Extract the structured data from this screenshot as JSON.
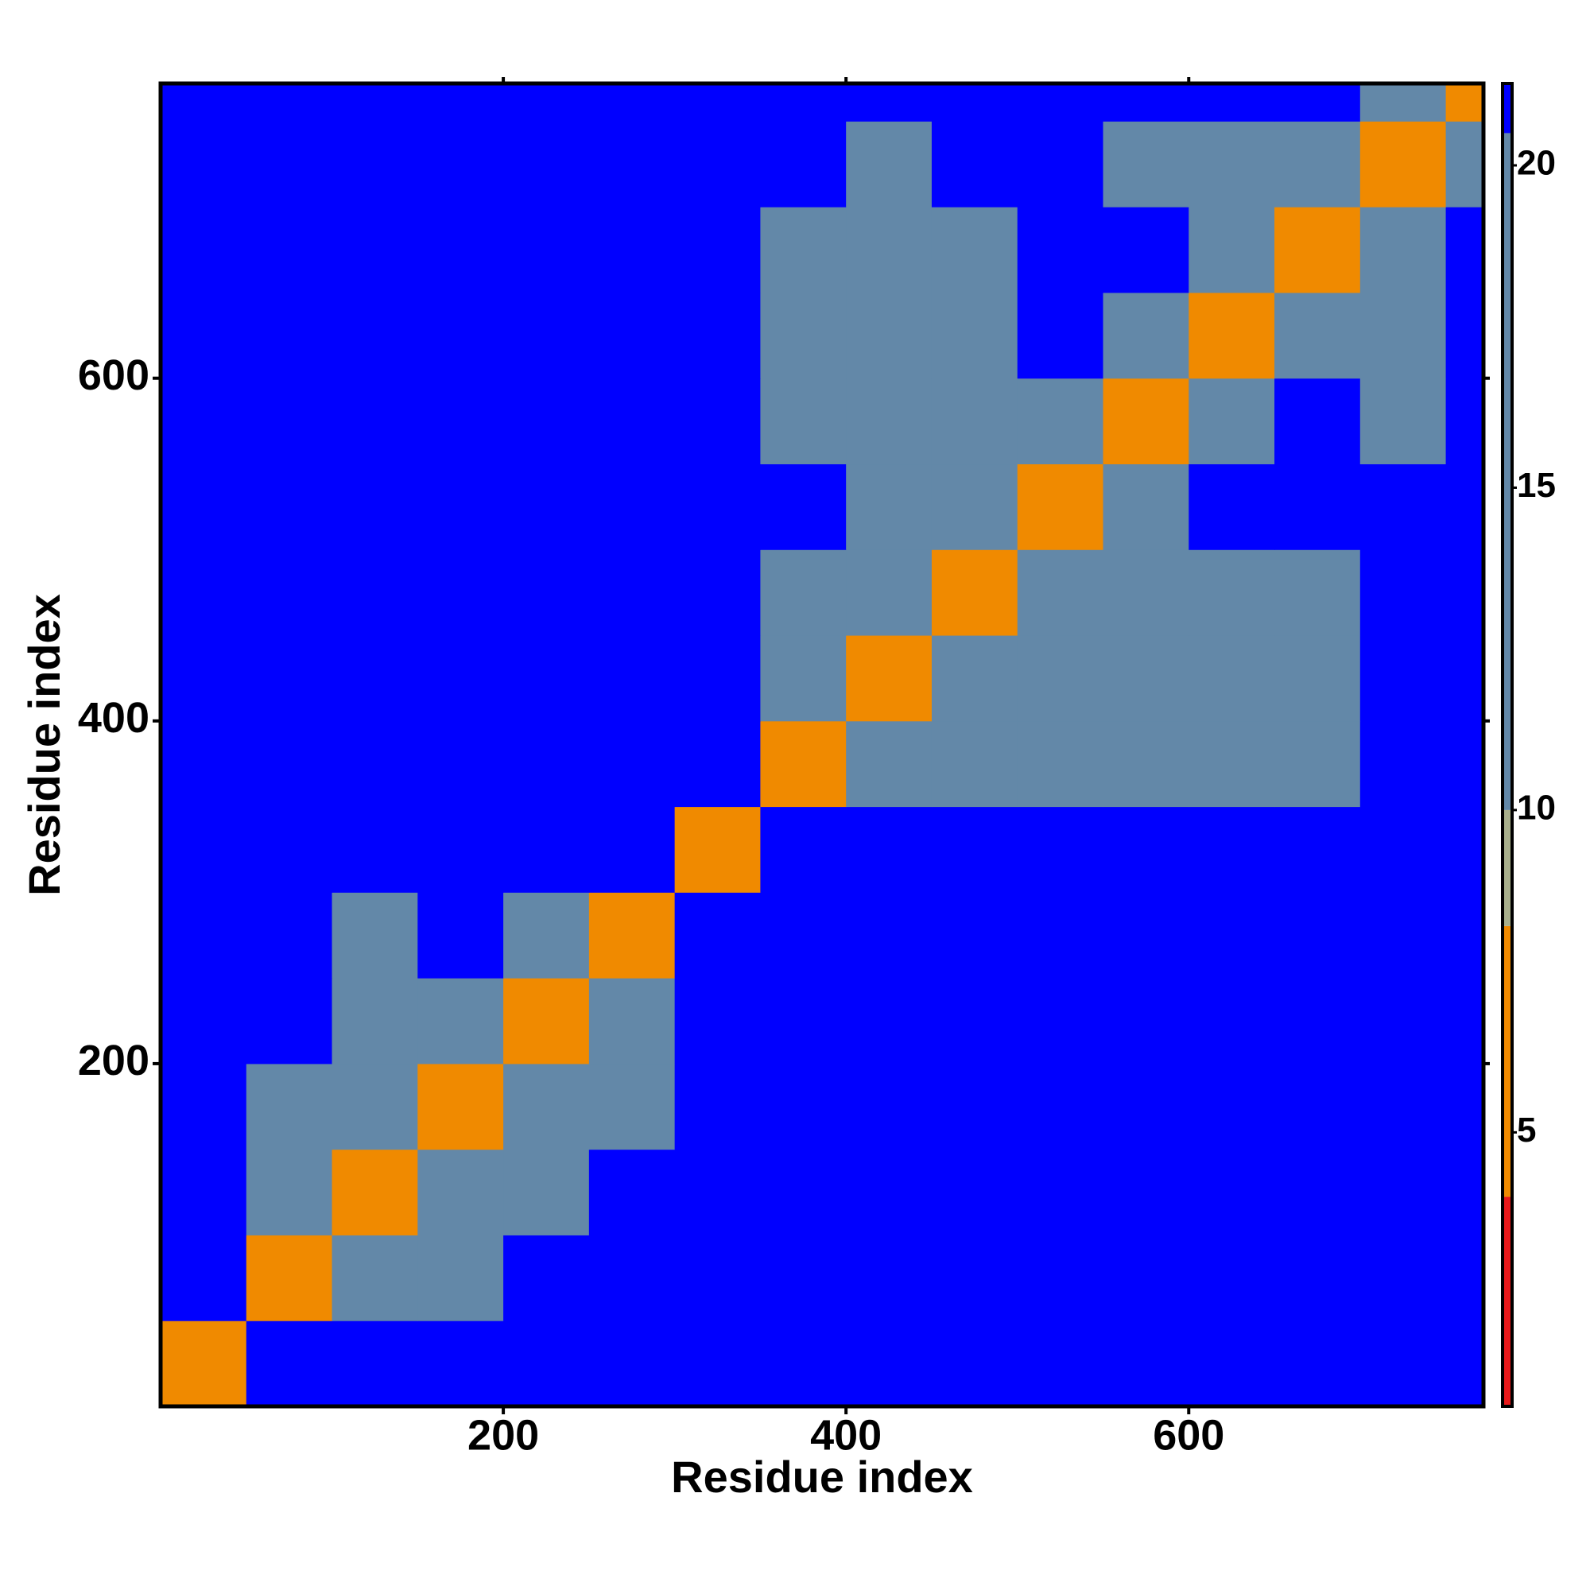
{
  "chart_data": {
    "type": "heatmap",
    "xlabel": "Residue index",
    "ylabel": "Residue index",
    "xlim": [
      0,
      772
    ],
    "ylim": [
      0,
      772
    ],
    "xticks": [
      200,
      400,
      600
    ],
    "yticks": [
      200,
      400,
      600
    ],
    "x_bins": [
      0,
      50,
      100,
      150,
      200,
      250,
      300,
      350,
      400,
      450,
      500,
      550,
      600,
      650,
      700,
      750,
      772
    ],
    "y_bins": [
      0,
      50,
      100,
      150,
      200,
      250,
      300,
      350,
      400,
      450,
      500,
      550,
      600,
      650,
      700,
      750,
      772
    ],
    "z": [
      [
        6,
        21,
        21,
        21,
        21,
        21,
        21,
        21,
        21,
        21,
        21,
        21,
        21,
        21,
        21,
        21
      ],
      [
        21,
        6,
        17,
        17,
        21,
        21,
        21,
        21,
        21,
        21,
        21,
        21,
        21,
        21,
        21,
        21
      ],
      [
        21,
        17,
        6,
        17,
        18,
        21,
        21,
        21,
        21,
        21,
        21,
        21,
        21,
        21,
        21,
        21
      ],
      [
        21,
        17,
        17,
        6,
        18,
        18,
        21,
        21,
        21,
        21,
        21,
        21,
        21,
        21,
        21,
        21
      ],
      [
        21,
        21,
        19,
        19,
        6,
        15,
        21,
        21,
        21,
        21,
        21,
        21,
        21,
        21,
        21,
        21
      ],
      [
        21,
        21,
        19,
        21,
        15,
        6,
        21,
        21,
        21,
        21,
        21,
        21,
        21,
        21,
        21,
        21
      ],
      [
        21,
        21,
        21,
        21,
        21,
        21,
        6,
        21,
        21,
        21,
        21,
        21,
        21,
        21,
        21,
        21
      ],
      [
        21,
        21,
        21,
        21,
        21,
        21,
        21,
        6,
        15,
        15,
        19,
        18,
        18,
        19,
        21,
        21
      ],
      [
        21,
        21,
        21,
        21,
        21,
        21,
        21,
        15,
        6,
        15,
        18,
        18,
        18,
        19,
        21,
        21
      ],
      [
        21,
        21,
        21,
        21,
        21,
        21,
        21,
        15,
        15,
        6,
        18,
        18,
        18,
        19,
        21,
        21
      ],
      [
        21,
        21,
        21,
        21,
        21,
        21,
        21,
        21,
        18,
        18,
        6,
        17,
        21,
        21,
        21,
        21
      ],
      [
        21,
        21,
        21,
        21,
        21,
        21,
        21,
        18,
        18,
        18,
        17,
        6,
        16,
        21,
        18,
        21
      ],
      [
        21,
        21,
        21,
        21,
        21,
        21,
        21,
        18,
        18,
        18,
        21,
        16,
        6,
        16,
        19,
        21
      ],
      [
        21,
        21,
        21,
        21,
        21,
        21,
        21,
        18,
        18,
        18,
        21,
        21,
        16,
        6,
        16,
        21
      ],
      [
        21,
        21,
        21,
        21,
        21,
        21,
        21,
        21,
        19,
        21,
        21,
        18,
        19,
        18,
        6,
        17
      ],
      [
        21,
        21,
        21,
        21,
        21,
        21,
        21,
        21,
        21,
        21,
        21,
        21,
        21,
        21,
        17,
        6
      ]
    ],
    "clim": [
      0.75,
      21.27
    ],
    "cticks": [
      5,
      10,
      15,
      20
    ],
    "colorscale": [
      [
        4,
        "#e8191b"
      ],
      [
        8.2,
        "#f08a00"
      ],
      [
        10,
        "#a9b08c"
      ],
      [
        20.5,
        "#6388a8"
      ],
      [
        21.27,
        "#0000ff"
      ]
    ]
  }
}
